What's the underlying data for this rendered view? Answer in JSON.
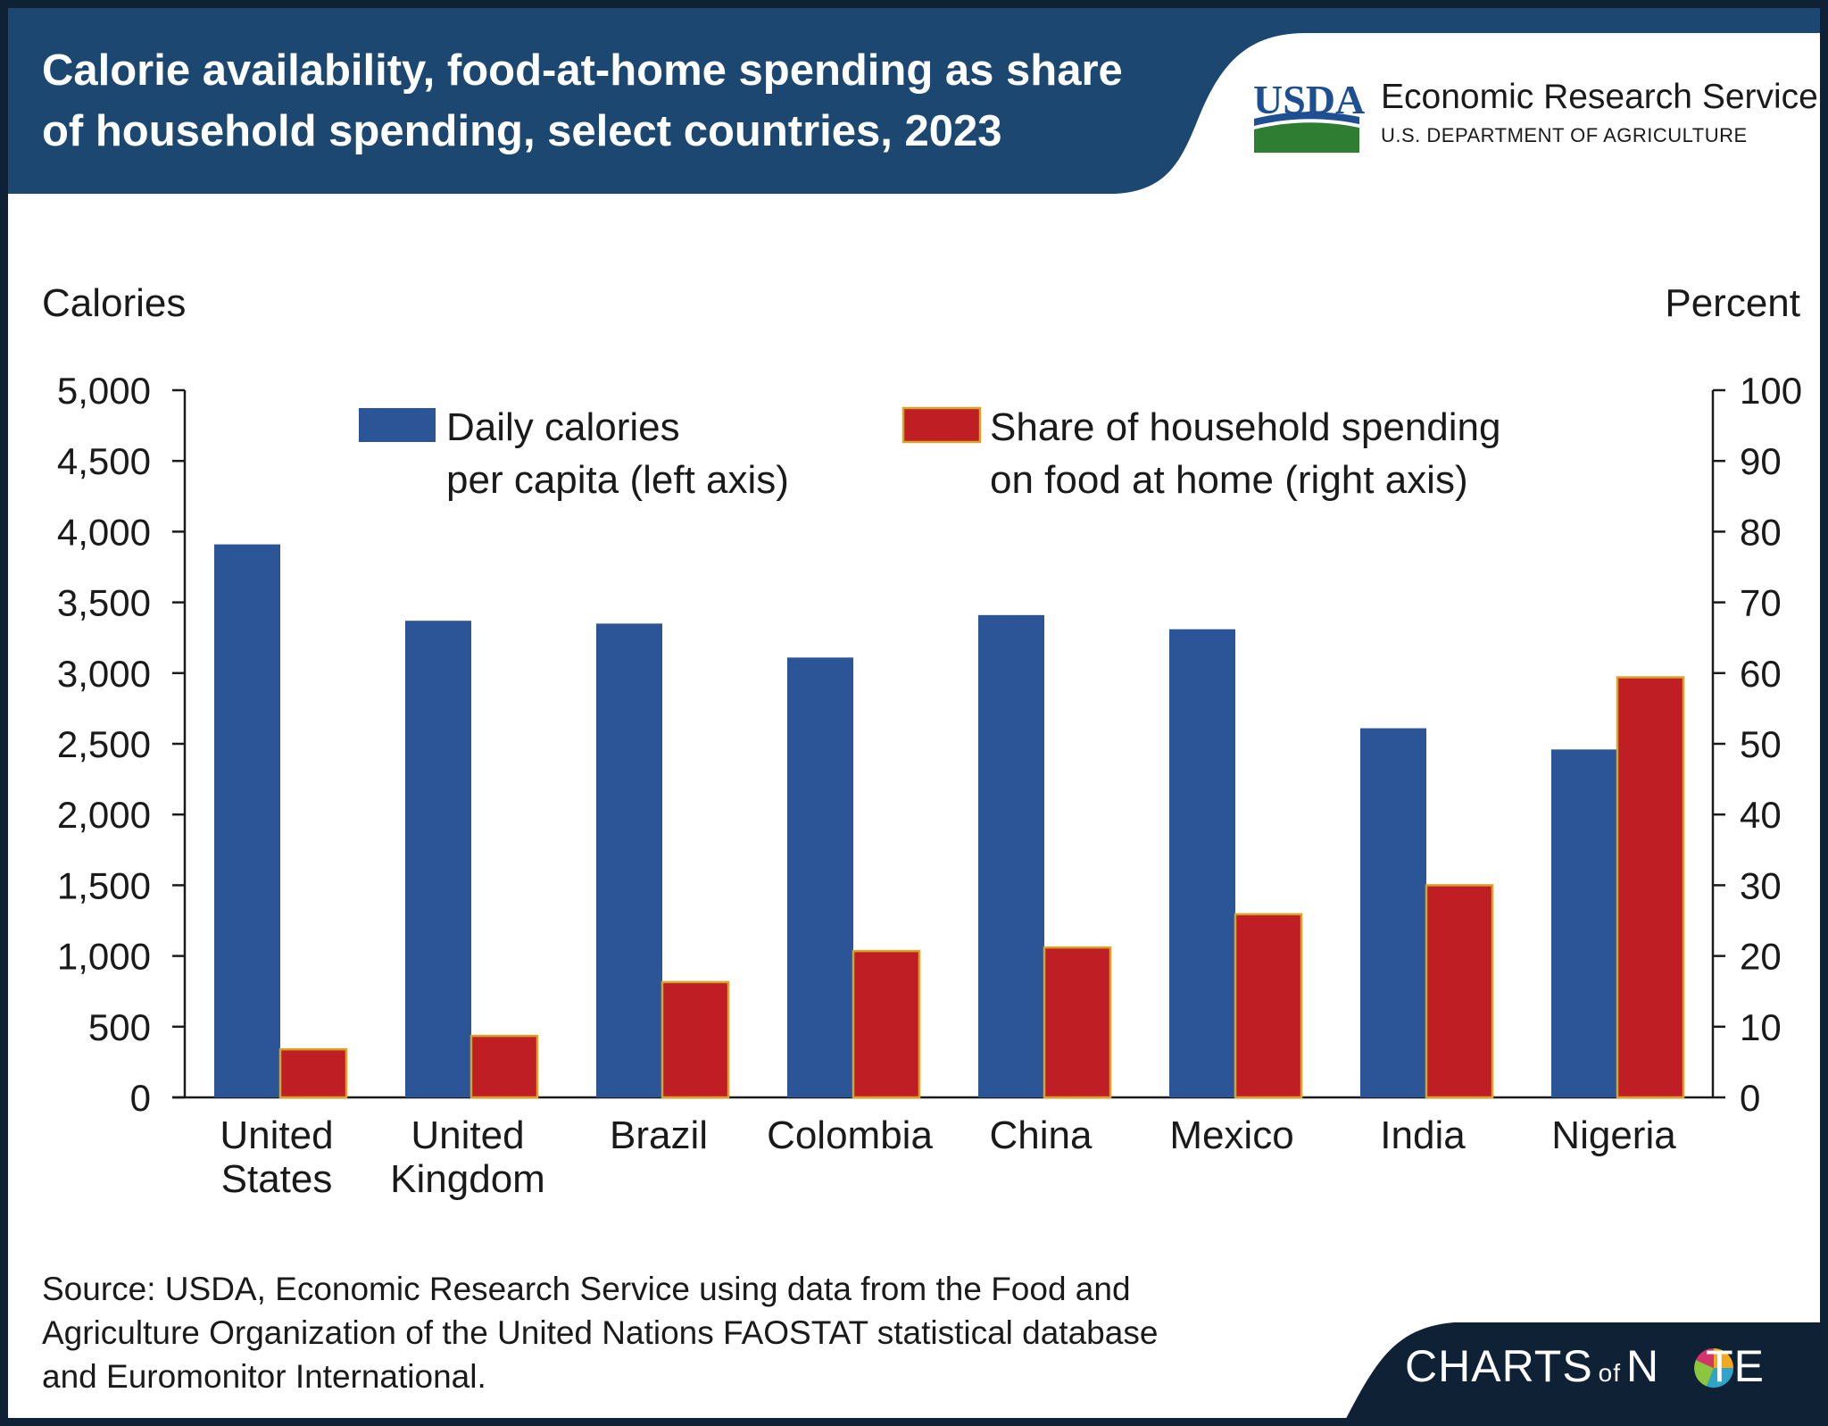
{
  "header": {
    "title_line1": "Calorie availability, food-at-home spending as share",
    "title_line2": "of household spending, select countries, 2023",
    "logo_text": "USDA",
    "agency_name": "Economic Research Service",
    "department": "U.S. DEPARTMENT OF AGRICULTURE"
  },
  "footer": {
    "source_line1": "Source: USDA, Economic Research Service using data from the Food and",
    "source_line2": "Agriculture Organization of the United Nations FAOSTAT statistical database",
    "source_line3": "and Euromonitor International.",
    "brand_charts": "CHARTS",
    "brand_of": "of",
    "brand_n": "N",
    "brand_te": "TE"
  },
  "colors": {
    "header_bg": "#1c4771",
    "footer_bg": "#0f2135",
    "calories_bar": "#2b5597",
    "share_bar": "#bf1e24",
    "share_bar_outline": "#d9a32a",
    "usda_blue": "#1f4f93",
    "usda_green": "#2e7d32"
  },
  "chart_data": {
    "type": "bar",
    "categories": [
      [
        "United",
        "States"
      ],
      [
        "United",
        "Kingdom"
      ],
      [
        "Brazil"
      ],
      [
        "Colombia"
      ],
      [
        "China"
      ],
      [
        "Mexico"
      ],
      [
        "India"
      ],
      [
        "Nigeria"
      ]
    ],
    "series": [
      {
        "name_lines": [
          "Daily calories",
          "per capita (left axis)"
        ],
        "axis": "left",
        "values": [
          3910,
          3370,
          3350,
          3110,
          3410,
          3310,
          2610,
          2460
        ]
      },
      {
        "name_lines": [
          "Share of household spending",
          "on food at home (right axis)"
        ],
        "axis": "right",
        "values": [
          6.8,
          8.7,
          16.3,
          20.7,
          21.2,
          25.9,
          30.0,
          59.4
        ]
      }
    ],
    "ylabel_left": "Calories",
    "ylabel_right": "Percent",
    "ylim_left": [
      0,
      5000
    ],
    "ylim_right": [
      0,
      100
    ],
    "yticks_left": [
      {
        "v": 0,
        "label": "0"
      },
      {
        "v": 500,
        "label": "500"
      },
      {
        "v": 1000,
        "label": "1,000"
      },
      {
        "v": 1500,
        "label": "1,500"
      },
      {
        "v": 2000,
        "label": "2,000"
      },
      {
        "v": 2500,
        "label": "2,500"
      },
      {
        "v": 3000,
        "label": "3,000"
      },
      {
        "v": 3500,
        "label": "3,500"
      },
      {
        "v": 4000,
        "label": "4,000"
      },
      {
        "v": 4500,
        "label": "4,500"
      },
      {
        "v": 5000,
        "label": "5,000"
      }
    ],
    "yticks_right": [
      {
        "v": 0,
        "label": "0"
      },
      {
        "v": 10,
        "label": "10"
      },
      {
        "v": 20,
        "label": "20"
      },
      {
        "v": 30,
        "label": "30"
      },
      {
        "v": 40,
        "label": "40"
      },
      {
        "v": 50,
        "label": "50"
      },
      {
        "v": 60,
        "label": "60"
      },
      {
        "v": 70,
        "label": "70"
      },
      {
        "v": 80,
        "label": "80"
      },
      {
        "v": 90,
        "label": "90"
      },
      {
        "v": 100,
        "label": "100"
      }
    ],
    "grid": false,
    "legend_placement": "top"
  }
}
